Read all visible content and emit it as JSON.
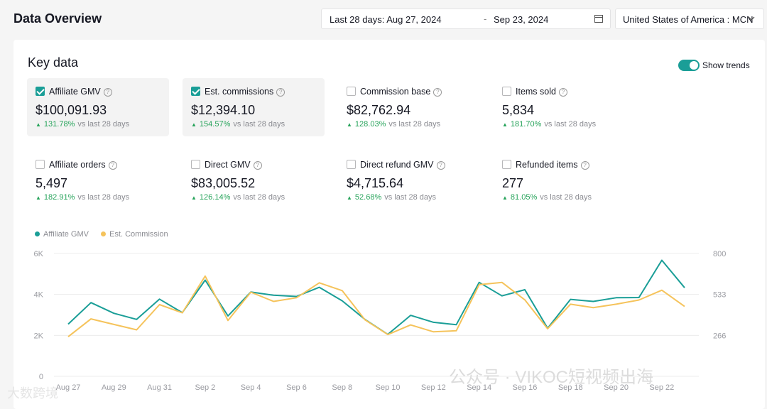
{
  "header": {
    "title": "Data Overview",
    "date_start": "Last 28 days: Aug 27, 2024",
    "date_sep": "-",
    "date_end": "Sep 23, 2024",
    "region": "United States of America : MCN"
  },
  "key_data": {
    "title": "Key data",
    "show_trends_label": "Show trends",
    "show_trends_on": true,
    "compare_text": "vs last 28 days",
    "metrics": [
      {
        "label": "Affiliate GMV",
        "value": "$100,091.93",
        "change": "131.78%",
        "checked": true
      },
      {
        "label": "Est. commissions",
        "value": "$12,394.10",
        "change": "154.57%",
        "checked": true
      },
      {
        "label": "Commission base",
        "value": "$82,762.94",
        "change": "128.03%",
        "checked": false
      },
      {
        "label": "Items sold",
        "value": "5,834",
        "change": "181.70%",
        "checked": false
      },
      {
        "label": "Affiliate orders",
        "value": "5,497",
        "change": "182.91%",
        "checked": false
      },
      {
        "label": "Direct GMV",
        "value": "$83,005.52",
        "change": "126.14%",
        "checked": false
      },
      {
        "label": "Direct refund GMV",
        "value": "$4,715.64",
        "change": "52.68%",
        "checked": false
      },
      {
        "label": "Refunded items",
        "value": "277",
        "change": "81.05%",
        "checked": false
      }
    ]
  },
  "chart_data": {
    "type": "line",
    "x": [
      "Aug 27",
      "Aug 28",
      "Aug 29",
      "Aug 30",
      "Aug 31",
      "Sep 1",
      "Sep 2",
      "Sep 3",
      "Sep 4",
      "Sep 5",
      "Sep 6",
      "Sep 7",
      "Sep 8",
      "Sep 9",
      "Sep 10",
      "Sep 11",
      "Sep 12",
      "Sep 13",
      "Sep 14",
      "Sep 15",
      "Sep 16",
      "Sep 17",
      "Sep 18",
      "Sep 19",
      "Sep 20",
      "Sep 21",
      "Sep 22",
      "Sep 23"
    ],
    "x_tick_labels": [
      "Aug 27",
      "Aug 29",
      "Aug 31",
      "Sep 2",
      "Sep 4",
      "Sep 6",
      "Sep 8",
      "Sep 10",
      "Sep 12",
      "Sep 14",
      "Sep 16",
      "Sep 18",
      "Sep 20",
      "Sep 22"
    ],
    "y_left_ticks": [
      "0",
      "2K",
      "4K",
      "6K"
    ],
    "y_left_range": [
      0,
      6000
    ],
    "y_right_ticks": [
      "266",
      "533",
      "800"
    ],
    "y_right_range": [
      0,
      800
    ],
    "grid": true,
    "legend_position": "top-left",
    "series": [
      {
        "name": "Affiliate GMV",
        "axis": "left",
        "color": "#1a9e97",
        "values": [
          2550,
          3600,
          3080,
          2780,
          3770,
          3110,
          4700,
          2950,
          4120,
          3960,
          3900,
          4350,
          3690,
          2780,
          2050,
          2980,
          2640,
          2520,
          4590,
          3930,
          4230,
          2350,
          3760,
          3660,
          3840,
          3850,
          5670,
          4330
        ]
      },
      {
        "name": "Est. Commission",
        "axis": "right",
        "color": "#f5c35b",
        "values": [
          258,
          374,
          338,
          303,
          467,
          414,
          653,
          364,
          548,
          488,
          512,
          609,
          558,
          368,
          272,
          335,
          290,
          297,
          597,
          612,
          498,
          310,
          470,
          447,
          470,
          497,
          561,
          455
        ]
      }
    ]
  },
  "watermark": {
    "text1": "公众号 · VIKOC短视频出海",
    "text2": "大数跨境"
  }
}
